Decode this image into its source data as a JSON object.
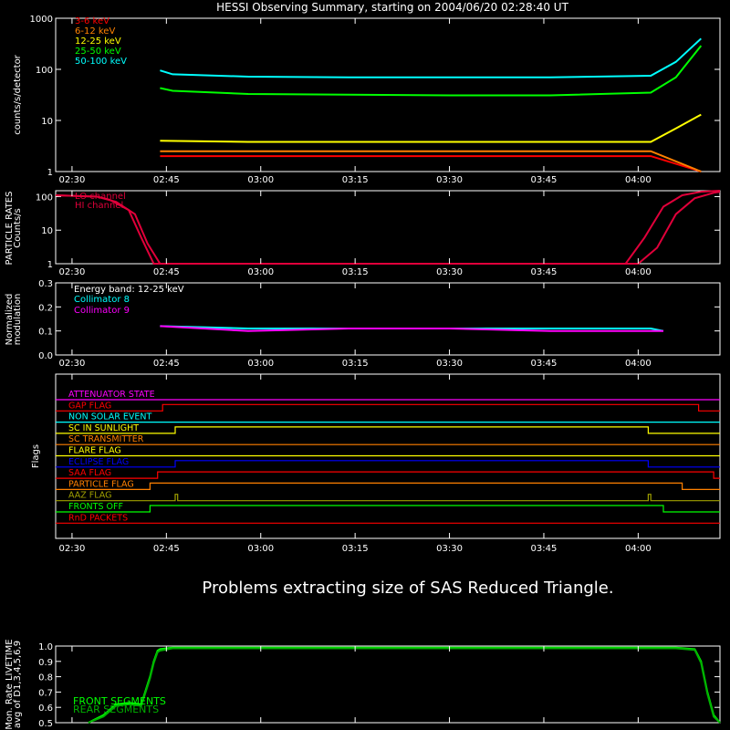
{
  "title": "HESSI Observing Summary, starting on 2004/06/20 02:28:40 UT",
  "time_ticks": [
    "02:30",
    "02:45",
    "03:00",
    "03:15",
    "03:30",
    "03:45",
    "04:00"
  ],
  "message": "Problems extracting size of SAS Reduced Triangle.",
  "colors": {
    "red": "#ff0000",
    "orange": "#ff8000",
    "yellow": "#ffff00",
    "green": "#00ff00",
    "cyan": "#00ffff",
    "magenta": "#ff00ff",
    "crimson": "#e0003a",
    "blue": "#0000ff",
    "olive": "#a0a000",
    "white": "#ffffff"
  },
  "chart_data": [
    {
      "type": "line",
      "ylabel": "counts/s/detector",
      "yscale": "log",
      "ylim": [
        1,
        1000
      ],
      "yticks": [
        "1",
        "10",
        "100",
        "1000"
      ],
      "x_unit": "minutes after 02:30 UT",
      "xlim": [
        -1.3,
        51.5
      ],
      "series": [
        {
          "name": "3-6 keV",
          "color": "#ff0000",
          "x": [
            7,
            14,
            22,
            30,
            38,
            46,
            50
          ],
          "y": [
            2,
            2,
            2,
            2,
            2,
            2,
            1
          ]
        },
        {
          "name": "6-12 keV",
          "color": "#ff8000",
          "x": [
            7,
            14,
            22,
            30,
            38,
            46,
            50
          ],
          "y": [
            2.5,
            2.5,
            2.5,
            2.5,
            2.5,
            2.5,
            1
          ]
        },
        {
          "name": "12-25 keV",
          "color": "#ffff00",
          "x": [
            7,
            14,
            22,
            30,
            38,
            46,
            48,
            50
          ],
          "y": [
            4,
            3.8,
            3.8,
            3.8,
            3.8,
            3.8,
            7,
            13
          ]
        },
        {
          "name": "25-50 keV",
          "color": "#00ff00",
          "x": [
            7,
            8,
            14,
            22,
            30,
            38,
            46,
            48,
            50
          ],
          "y": [
            43,
            38,
            33,
            32,
            31,
            31,
            35,
            70,
            290
          ]
        },
        {
          "name": "50-100 keV",
          "color": "#00ffff",
          "x": [
            7,
            8,
            14,
            22,
            30,
            38,
            46,
            48,
            50
          ],
          "y": [
            95,
            80,
            72,
            70,
            70,
            70,
            75,
            140,
            400
          ]
        }
      ]
    },
    {
      "type": "line",
      "ylabel": "PARTICLE RATES\nCounts/s",
      "yscale": "log",
      "ylim": [
        1,
        150
      ],
      "yticks": [
        "1",
        "10",
        "100"
      ],
      "series": [
        {
          "name": "LO channel",
          "color": "#e0003a",
          "x": [
            -1.3,
            2,
            3,
            4.5,
            5.5,
            6.5,
            44,
            45.5,
            47,
            48.5,
            50,
            51.5
          ],
          "y": [
            110,
            100,
            80,
            40,
            6,
            1,
            1,
            6,
            50,
            110,
            140,
            150
          ]
        },
        {
          "name": "HI channel",
          "color": "#e0003a",
          "x": [
            -1.3,
            2,
            3.5,
            5,
            6,
            7,
            45,
            46.5,
            48,
            49.5,
            51,
            51.5
          ],
          "y": [
            110,
            100,
            70,
            30,
            4,
            1,
            1,
            3,
            30,
            90,
            130,
            140
          ]
        }
      ]
    },
    {
      "type": "line",
      "title": "Energy band: 12-25 keV",
      "ylabel": "Normalized\nmodulation",
      "ylim": [
        0,
        0.3
      ],
      "yticks": [
        "0.0",
        "0.1",
        "0.2",
        "0.3"
      ],
      "series": [
        {
          "name": "Collimator 8",
          "color": "#00ffff",
          "x": [
            7,
            14,
            22,
            30,
            38,
            46,
            47
          ],
          "y": [
            0.12,
            0.11,
            0.11,
            0.11,
            0.11,
            0.11,
            0.1
          ]
        },
        {
          "name": "Collimator 9",
          "color": "#ff00ff",
          "x": [
            7,
            14,
            22,
            30,
            38,
            46,
            47
          ],
          "y": [
            0.12,
            0.1,
            0.11,
            0.11,
            0.1,
            0.1,
            0.1
          ]
        }
      ]
    },
    {
      "type": "line",
      "ylabel": "Flags",
      "flags": [
        {
          "name": "ATTENUATOR STATE",
          "color": "#ff00ff",
          "transitions": []
        },
        {
          "name": "GAP FLAG",
          "color": "#ff0000",
          "transitions": [
            7.2,
            49.8
          ]
        },
        {
          "name": "NON SOLAR EVENT",
          "color": "#00ffff",
          "transitions": []
        },
        {
          "name": "SC IN SUNLIGHT",
          "color": "#ffff00",
          "transitions": [
            8.2,
            45.8
          ]
        },
        {
          "name": "SC TRANSMITTER",
          "color": "#ff8000",
          "transitions": []
        },
        {
          "name": "FLARE FLAG",
          "color": "#ffff00",
          "transitions": []
        },
        {
          "name": "ECLIPSE FLAG",
          "color": "#0000ff",
          "transitions": [
            8.2,
            45.8
          ]
        },
        {
          "name": "SAA FLAG",
          "color": "#ff0000",
          "transitions": [
            6.8,
            51
          ]
        },
        {
          "name": "PARTICLE FLAG",
          "color": "#ff8000",
          "transitions": [
            6.2,
            48.5
          ]
        },
        {
          "name": "AAZ FLAG",
          "color": "#a0a000",
          "transitions": [
            8.2,
            8.4,
            45.8,
            46
          ]
        },
        {
          "name": "FRONTS OFF",
          "color": "#00ff00",
          "transitions": [
            6.2,
            47
          ]
        },
        {
          "name": "RnD PACKETS",
          "color": "#ff0000",
          "transitions": []
        }
      ]
    },
    {
      "type": "line",
      "ylabel": "Mon. Rate LIVETIME\navg of D1,3,4,5,6,9",
      "ylim": [
        0.5,
        1.0
      ],
      "yticks": [
        "0.5",
        "0.6",
        "0.7",
        "0.8",
        "0.9",
        "1.0"
      ],
      "series": [
        {
          "name": "FRONT SEGMENTS",
          "color": "#00ff00",
          "x": [
            1.3,
            2.5,
            3.5,
            4.5,
            5.5,
            6.2,
            6.5,
            6.8,
            7,
            8,
            20,
            40,
            48,
            49.5,
            50,
            50.5,
            51,
            51.5
          ],
          "y": [
            0.5,
            0.55,
            0.62,
            0.63,
            0.62,
            0.8,
            0.9,
            0.97,
            0.98,
            0.99,
            0.99,
            0.99,
            0.99,
            0.98,
            0.9,
            0.7,
            0.55,
            0.5
          ]
        },
        {
          "name": "REAR SEGMENTS",
          "color": "#00b000",
          "x": [
            1.3,
            2.5,
            3.5,
            4.5,
            5.5,
            6.2,
            6.5,
            6.8,
            7,
            8,
            20,
            40,
            48,
            49.5,
            50,
            50.5,
            51,
            51.5
          ],
          "y": [
            0.5,
            0.54,
            0.61,
            0.62,
            0.61,
            0.79,
            0.89,
            0.96,
            0.97,
            0.985,
            0.985,
            0.985,
            0.985,
            0.975,
            0.89,
            0.69,
            0.54,
            0.5
          ]
        }
      ]
    }
  ]
}
